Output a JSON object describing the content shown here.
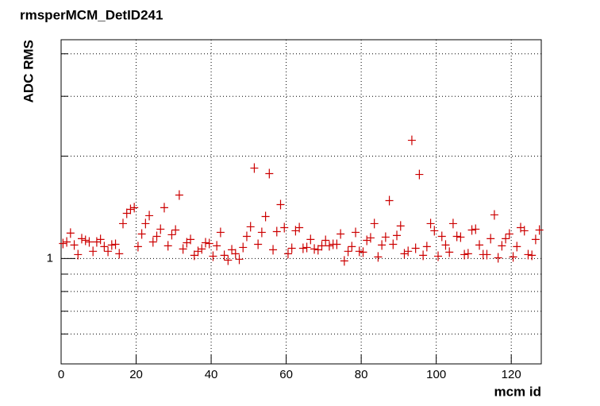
{
  "chart_data": {
    "type": "scatter",
    "title": "rmsperMCM_DetID241",
    "x_label": "mcm id",
    "y_label": "ADC RMS",
    "xlim": [
      0,
      128
    ],
    "xticks": [
      0,
      20,
      40,
      60,
      80,
      100,
      120
    ],
    "ylim": [
      0.49,
      4.4
    ],
    "yticks": [
      1
    ],
    "yminor": [
      0.6,
      0.7,
      0.8,
      0.9,
      2,
      3,
      4
    ],
    "log_y": true,
    "grid": true,
    "color": "#cc0000",
    "series": [
      {
        "name": "rmsperMCM_DetID241",
        "color": "#cc0000",
        "x": [
          0.5,
          1.5,
          2.5,
          3.5,
          4.5,
          5.5,
          6.5,
          7.5,
          8.5,
          9.5,
          10.5,
          11.5,
          12.5,
          13.5,
          14.5,
          15.5,
          16.5,
          17.5,
          18.5,
          19.5,
          20.5,
          21.5,
          22.5,
          23.5,
          24.5,
          25.5,
          26.5,
          27.5,
          28.5,
          29.5,
          30.5,
          31.5,
          32.5,
          33.5,
          34.5,
          35.5,
          36.5,
          37.5,
          38.5,
          39.5,
          40.5,
          41.5,
          42.5,
          43.5,
          44.5,
          45.5,
          46.5,
          47.5,
          48.5,
          49.5,
          50.5,
          51.5,
          52.5,
          53.5,
          54.5,
          55.5,
          56.5,
          57.5,
          58.5,
          59.5,
          60.5,
          61.5,
          62.5,
          63.5,
          64.5,
          65.5,
          66.5,
          67.5,
          68.5,
          69.5,
          70.5,
          71.5,
          72.5,
          73.5,
          74.5,
          75.5,
          76.5,
          77.5,
          78.5,
          79.5,
          80.5,
          81.5,
          82.5,
          83.5,
          84.5,
          85.5,
          86.5,
          87.5,
          88.5,
          89.5,
          90.5,
          91.5,
          92.5,
          93.5,
          94.5,
          95.5,
          96.5,
          97.5,
          98.5,
          99.5,
          100.5,
          101.5,
          102.5,
          103.5,
          104.5,
          105.5,
          106.5,
          107.5,
          108.5,
          109.5,
          110.5,
          111.5,
          112.5,
          113.5,
          114.5,
          115.5,
          116.5,
          117.5,
          118.5,
          119.5,
          120.5,
          121.5,
          122.5,
          123.5,
          124.5,
          125.5,
          126.5,
          127.5
        ],
        "values": [
          1.107,
          1.119,
          1.188,
          1.096,
          1.027,
          1.144,
          1.131,
          1.119,
          1.05,
          1.119,
          1.138,
          1.084,
          1.05,
          1.096,
          1.101,
          1.033,
          1.267,
          1.358,
          1.395,
          1.411,
          1.084,
          1.181,
          1.267,
          1.337,
          1.119,
          1.162,
          1.22,
          1.411,
          1.09,
          1.175,
          1.213,
          1.537,
          1.067,
          1.113,
          1.138,
          1.022,
          1.05,
          1.067,
          1.113,
          1.107,
          1.016,
          1.09,
          1.194,
          1.022,
          0.989,
          1.061,
          1.033,
          0.995,
          1.078,
          1.162,
          1.24,
          1.845,
          1.101,
          1.194,
          1.329,
          1.777,
          1.061,
          1.2,
          1.441,
          1.233,
          1.033,
          1.072,
          1.207,
          1.233,
          1.072,
          1.078,
          1.138,
          1.067,
          1.061,
          1.09,
          1.131,
          1.09,
          1.101,
          1.101,
          1.181,
          0.984,
          1.05,
          1.084,
          1.194,
          1.05,
          1.044,
          1.131,
          1.15,
          1.267,
          1.011,
          1.096,
          1.156,
          1.48,
          1.101,
          1.169,
          1.247,
          1.033,
          1.05,
          2.227,
          1.072,
          1.767,
          1.022,
          1.084,
          1.267,
          1.207,
          1.016,
          1.162,
          1.096,
          1.044,
          1.267,
          1.162,
          1.156,
          1.027,
          1.033,
          1.213,
          1.22,
          1.096,
          1.027,
          1.027,
          1.144,
          1.344,
          1.005,
          1.09,
          1.144,
          1.181,
          1.011,
          1.084,
          1.233,
          1.207,
          1.027,
          1.022,
          1.138,
          1.213
        ]
      }
    ]
  }
}
